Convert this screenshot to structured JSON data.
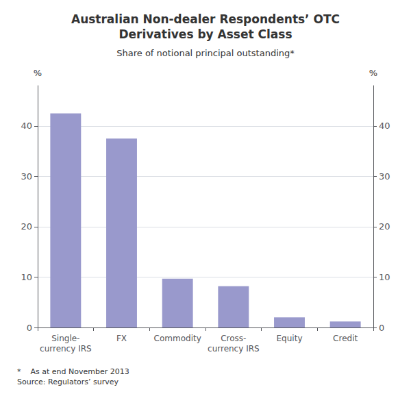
{
  "chart_data": {
    "type": "bar",
    "title": "Australian Non-dealer Respondents’ OTC\nDerivatives by Asset Class",
    "subtitle": "Share of notional principal outstanding*",
    "categories": [
      "Single-\ncurrency IRS",
      "FX",
      "Commodity",
      "Cross-\ncurrency IRS",
      "Equity",
      "Credit"
    ],
    "values": [
      42.5,
      37.5,
      9.7,
      8.2,
      2.0,
      1.2
    ],
    "color": "#9999cc",
    "ylabel": "%",
    "y2label": "%",
    "ylim": [
      0,
      48
    ],
    "yticks": [
      0,
      10,
      20,
      30,
      40
    ],
    "y2lim": [
      0,
      48
    ],
    "y2ticks": [
      0,
      10,
      20,
      30,
      40
    ],
    "grid": true,
    "footnote": "*    As at end November 2013\nSource: Regulators’ survey"
  }
}
